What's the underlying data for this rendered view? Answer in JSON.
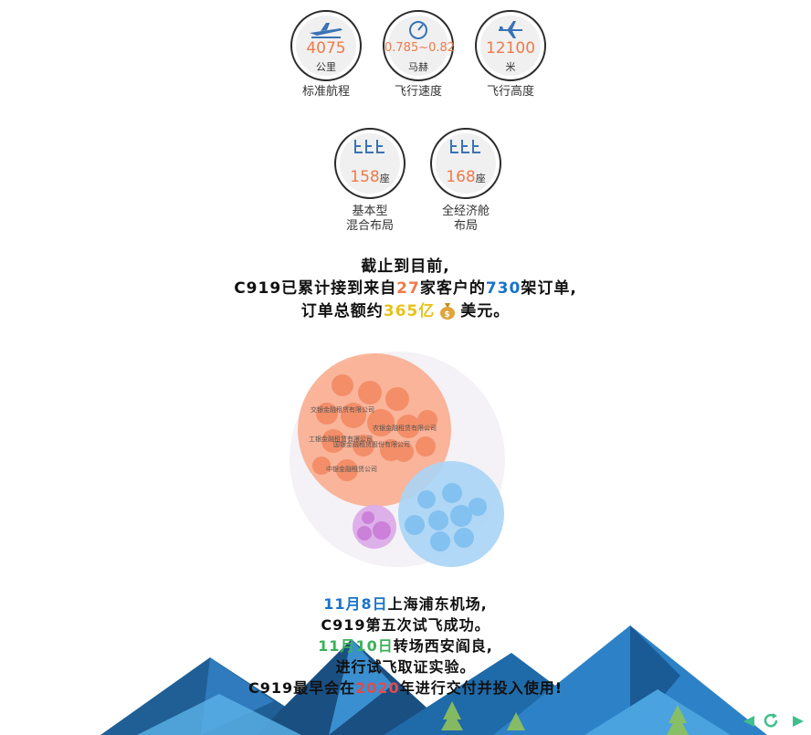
{
  "stats_row1": [
    {
      "value": "4075",
      "unit": "公里",
      "label": "标准航程",
      "icon": "airplane-landing-icon"
    },
    {
      "value": "0.785~0.82",
      "unit": "马赫",
      "label": "飞行速度",
      "icon": "gauge-icon"
    },
    {
      "value": "12100",
      "unit": "米",
      "label": "飞行高度",
      "icon": "airplane-icon"
    }
  ],
  "stats_row2": [
    {
      "value": "158",
      "unit": "座",
      "label1": "基本型",
      "label2": "混合布局",
      "icon": "seats-icon"
    },
    {
      "value": "168",
      "unit": "座",
      "label1": "全经济舱",
      "label2": "布局",
      "icon": "seats-icon"
    }
  ],
  "orders": {
    "line1": "截止到目前,",
    "line2_a": "C919已累计接到来自",
    "customers": "27",
    "line2_b": "家客户的",
    "planes": "730",
    "line2_c": "架订单,",
    "line3_a": "订单总额约",
    "amount": "365亿",
    "line3_b": "美元。"
  },
  "bubbles": {
    "labels": [
      "交银金融租赁有限公司",
      "农银金融租赁有限公司",
      "工银金融租赁有限公司",
      "国银金融租赁股份有限公司",
      "中银金融租赁公司"
    ]
  },
  "timeline": {
    "date1": "11月8日",
    "text1": "上海浦东机场,",
    "text2": "C919第五次试飞成功。",
    "date2": "11月10日",
    "text3": "转场西安阎良,",
    "text4": "进行试飞取证实验。",
    "text5a": "C919最早会在",
    "year": "2020",
    "text5b": "年进行交付并投入使用!"
  },
  "colors": {
    "accent_orange": "#f07a4a",
    "accent_blue": "#1a73c9",
    "accent_green": "#3bb15a",
    "nav_green": "#3fbf8c"
  }
}
